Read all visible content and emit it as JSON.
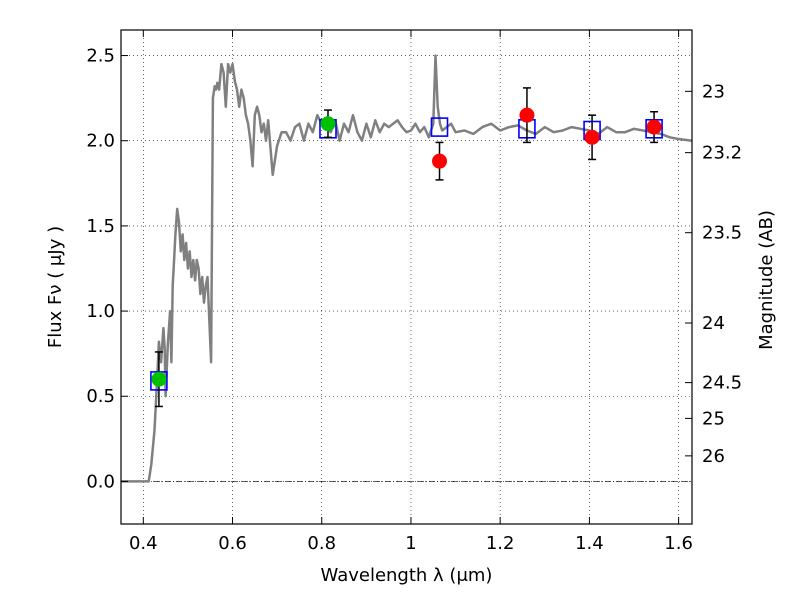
{
  "chart_data": {
    "type": "scatter",
    "xlabel": "Wavelength  λ (μm)",
    "ylabel": "Flux  Fν  ( μJy )",
    "ylabel_right": "Magnitude (AB)",
    "xlim": [
      0.35,
      1.63
    ],
    "ylim": [
      -0.25,
      2.65
    ],
    "grid": true,
    "x_ticks": [
      0.4,
      0.6,
      0.8,
      1.0,
      1.2,
      1.4,
      1.6
    ],
    "x_tick_labels": [
      "0.4",
      "0.6",
      "0.8",
      "1",
      "1.2",
      "1.4",
      "1.6"
    ],
    "y_ticks": [
      0.0,
      0.5,
      1.0,
      1.5,
      2.0,
      2.5
    ],
    "y_tick_labels": [
      "0.0",
      "0.5",
      "1.0",
      "1.5",
      "2.0",
      "2.5"
    ],
    "right_ticks": [
      {
        "label": "23",
        "flux": 2.29
      },
      {
        "label": "23.2",
        "flux": 1.93
      },
      {
        "label": "23.5",
        "flux": 1.46
      },
      {
        "label": "24",
        "flux": 0.93
      },
      {
        "label": "24.5",
        "flux": 0.58
      },
      {
        "label": "25",
        "flux": 0.37
      },
      {
        "label": "26",
        "flux": 0.15
      }
    ],
    "zero_line": 0.0,
    "series": [
      {
        "kind": "model_spectrum",
        "color": "#808080",
        "x": [
          0.35,
          0.412,
          0.418,
          0.425,
          0.43,
          0.435,
          0.44,
          0.445,
          0.448,
          0.45,
          0.455,
          0.46,
          0.463,
          0.466,
          0.469,
          0.472,
          0.476,
          0.48,
          0.484,
          0.488,
          0.492,
          0.496,
          0.5,
          0.504,
          0.508,
          0.512,
          0.516,
          0.52,
          0.524,
          0.528,
          0.532,
          0.536,
          0.54,
          0.544,
          0.548,
          0.552,
          0.556,
          0.56,
          0.563,
          0.566,
          0.57,
          0.575,
          0.58,
          0.585,
          0.59,
          0.595,
          0.6,
          0.605,
          0.61,
          0.615,
          0.62,
          0.625,
          0.63,
          0.635,
          0.64,
          0.645,
          0.65,
          0.655,
          0.66,
          0.665,
          0.67,
          0.675,
          0.68,
          0.69,
          0.7,
          0.71,
          0.72,
          0.73,
          0.74,
          0.75,
          0.76,
          0.77,
          0.78,
          0.79,
          0.8,
          0.81,
          0.82,
          0.83,
          0.84,
          0.85,
          0.86,
          0.87,
          0.88,
          0.89,
          0.9,
          0.91,
          0.92,
          0.93,
          0.94,
          0.95,
          0.96,
          0.97,
          0.98,
          0.99,
          1.0,
          1.01,
          1.02,
          1.03,
          1.04,
          1.05,
          1.055,
          1.06,
          1.065,
          1.07,
          1.08,
          1.09,
          1.1,
          1.12,
          1.14,
          1.16,
          1.18,
          1.2,
          1.22,
          1.24,
          1.26,
          1.28,
          1.3,
          1.32,
          1.34,
          1.36,
          1.38,
          1.4,
          1.42,
          1.44,
          1.46,
          1.48,
          1.5,
          1.52,
          1.54,
          1.56,
          1.58,
          1.6,
          1.63
        ],
        "y": [
          0.0,
          0.0,
          0.1,
          0.3,
          0.55,
          0.82,
          0.7,
          0.9,
          0.78,
          0.5,
          0.8,
          1.0,
          0.7,
          1.15,
          1.3,
          1.45,
          1.6,
          1.52,
          1.35,
          1.45,
          1.3,
          1.4,
          1.25,
          1.35,
          1.2,
          1.3,
          1.18,
          1.3,
          1.25,
          1.1,
          1.2,
          1.05,
          1.15,
          1.2,
          0.95,
          0.7,
          2.25,
          2.32,
          2.3,
          2.34,
          2.3,
          2.45,
          2.4,
          2.2,
          2.45,
          2.4,
          2.45,
          2.35,
          2.3,
          2.2,
          2.3,
          2.25,
          2.15,
          2.1,
          2.0,
          1.85,
          2.15,
          2.2,
          2.15,
          2.05,
          2.1,
          2.0,
          2.12,
          1.8,
          1.97,
          2.05,
          2.05,
          2.0,
          2.08,
          2.1,
          2.0,
          2.1,
          2.05,
          2.15,
          2.1,
          2.1,
          2.05,
          2.12,
          2.0,
          2.1,
          2.05,
          2.15,
          2.05,
          2.0,
          2.1,
          2.02,
          2.12,
          2.05,
          2.1,
          2.08,
          2.1,
          2.12,
          2.08,
          2.05,
          2.06,
          2.1,
          2.05,
          2.08,
          2.02,
          2.1,
          2.5,
          2.2,
          2.1,
          2.06,
          2.08,
          2.1,
          2.05,
          2.06,
          2.04,
          2.08,
          2.1,
          2.06,
          2.08,
          2.09,
          2.06,
          2.04,
          2.08,
          2.05,
          2.06,
          2.08,
          2.07,
          2.06,
          2.04,
          2.08,
          2.05,
          2.05,
          2.07,
          2.06,
          2.05,
          2.04,
          2.02,
          2.01,
          2.0
        ]
      },
      {
        "kind": "model_photometry",
        "marker": "open-square",
        "color": "#0000ff",
        "x": [
          0.435,
          0.814,
          1.064,
          1.26,
          1.406,
          1.545
        ],
        "y": [
          0.59,
          2.07,
          2.08,
          2.07,
          2.06,
          2.07
        ]
      },
      {
        "kind": "observed_detections",
        "marker": "filled-circle",
        "color": "#00c000",
        "x": [
          0.435,
          0.814
        ],
        "y": [
          0.6,
          2.1
        ],
        "yerr": [
          0.16,
          0.08
        ]
      },
      {
        "kind": "observed_detections",
        "marker": "filled-circle",
        "color": "#ff0000",
        "x": [
          1.064,
          1.26,
          1.406,
          1.545
        ],
        "y": [
          1.88,
          2.15,
          2.02,
          2.08
        ],
        "yerr": [
          0.11,
          0.16,
          0.13,
          0.09
        ]
      }
    ]
  }
}
